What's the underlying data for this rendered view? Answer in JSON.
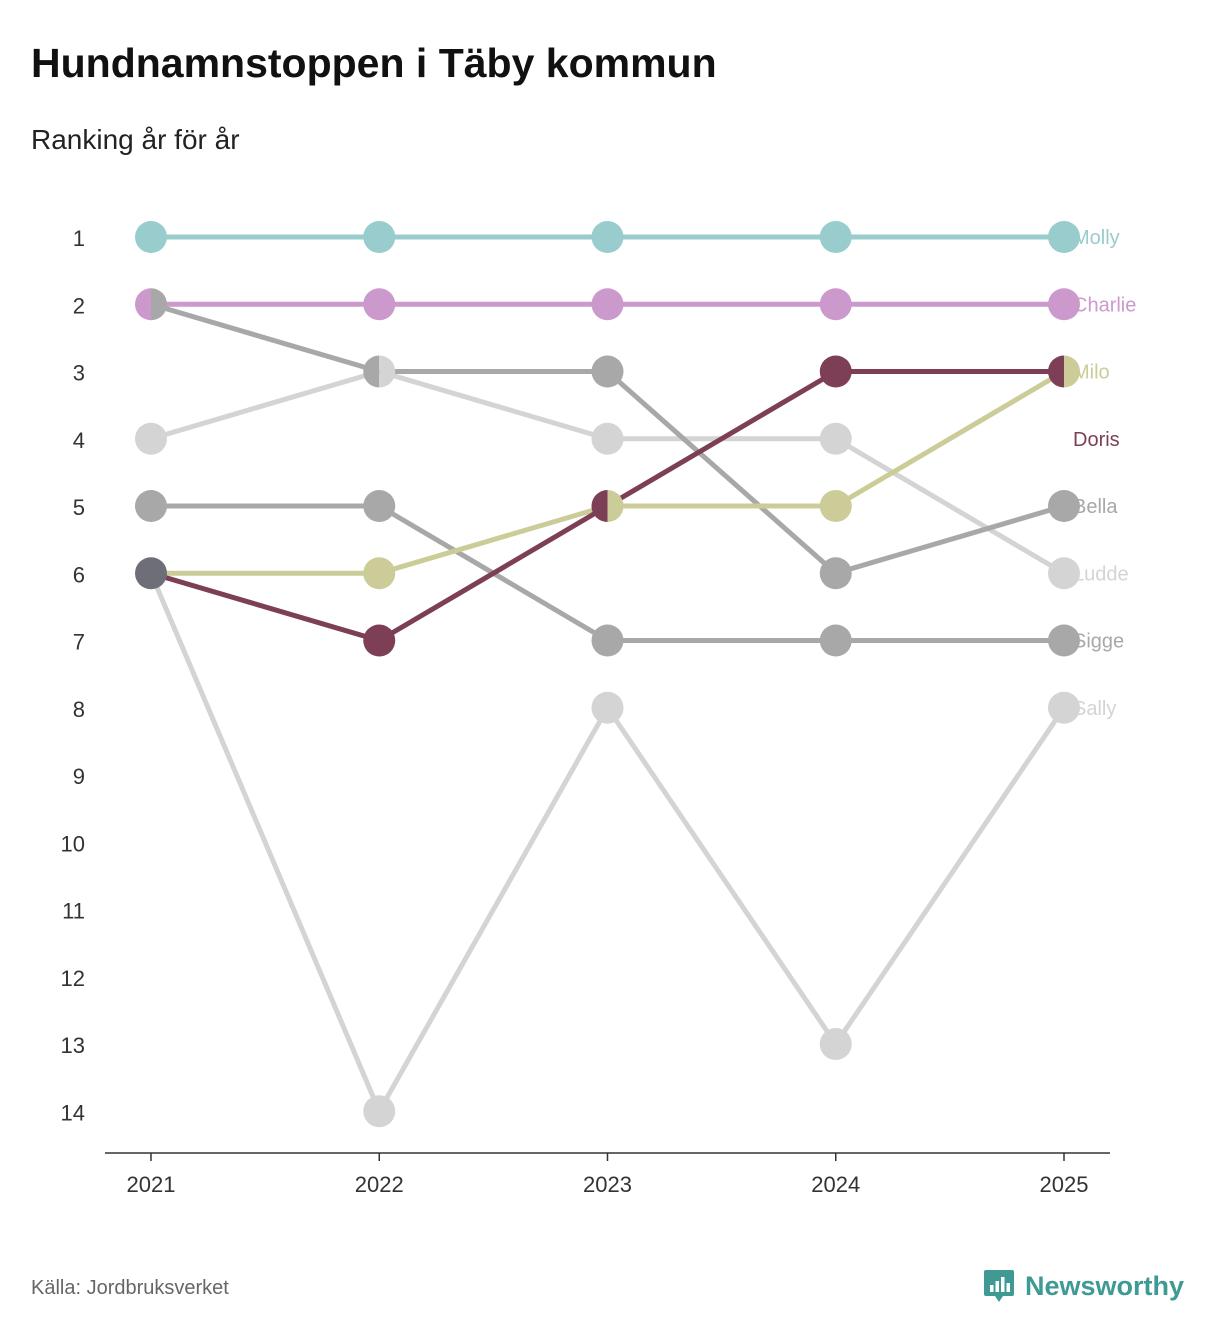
{
  "header": {
    "title": "Hundnamnstoppen i Täby kommun",
    "subtitle": "Ranking år för år"
  },
  "footer": {
    "source": "Källa: Jordbruksverket",
    "brand": "Newsworthy",
    "brand_color": "#3e9a92"
  },
  "chart_data": {
    "type": "line",
    "title": "Hundnamnstoppen i Täby kommun",
    "subtitle": "Ranking år för år",
    "xlabel": "",
    "ylabel": "",
    "x": [
      "2021",
      "2022",
      "2023",
      "2024",
      "2025"
    ],
    "y_ticks": [
      1,
      2,
      3,
      4,
      5,
      6,
      7,
      8,
      9,
      10,
      11,
      12,
      13,
      14
    ],
    "ylim": [
      1,
      14
    ],
    "y_inverted": true,
    "grid": false,
    "series": [
      {
        "name": "Sally",
        "values": [
          6,
          14,
          8,
          13,
          8
        ],
        "color": "#d4d4d4"
      },
      {
        "name": "Ludde",
        "values": [
          4,
          3,
          4,
          4,
          6
        ],
        "color": "#d4d4d4"
      },
      {
        "name": "Sigge",
        "values": [
          5,
          5,
          7,
          7,
          7
        ],
        "color": "#a8a8a8"
      },
      {
        "name": "Bella",
        "values": [
          2,
          3,
          3,
          6,
          5
        ],
        "color": "#a8a8a8"
      },
      {
        "name": "Milo",
        "values": [
          6,
          6,
          5,
          5,
          3
        ],
        "color": "#cccc99"
      },
      {
        "name": "Doris",
        "values": [
          6,
          7,
          5,
          3,
          3
        ],
        "color": "#7d3f55"
      },
      {
        "name": "Charlie",
        "values": [
          2,
          2,
          2,
          2,
          2
        ],
        "color": "#cc99cc"
      },
      {
        "name": "Molly",
        "values": [
          1,
          1,
          1,
          1,
          1
        ],
        "color": "#99cccc"
      }
    ],
    "end_labels": [
      {
        "name": "Molly",
        "rank": 1,
        "color": "#99cccc"
      },
      {
        "name": "Charlie",
        "rank": 2,
        "color": "#cc99cc"
      },
      {
        "name": "Milo",
        "rank": 3,
        "color": "#cccc99"
      },
      {
        "name": "Doris",
        "rank": 4,
        "color": "#7d3f55"
      },
      {
        "name": "Bella",
        "rank": 5,
        "color": "#a8a8a8"
      },
      {
        "name": "Ludde",
        "rank": 6,
        "color": "#d4d4d4"
      },
      {
        "name": "Sigge",
        "rank": 7,
        "color": "#a8a8a8"
      },
      {
        "name": "Sally",
        "rank": 8,
        "color": "#d4d4d4"
      }
    ]
  }
}
